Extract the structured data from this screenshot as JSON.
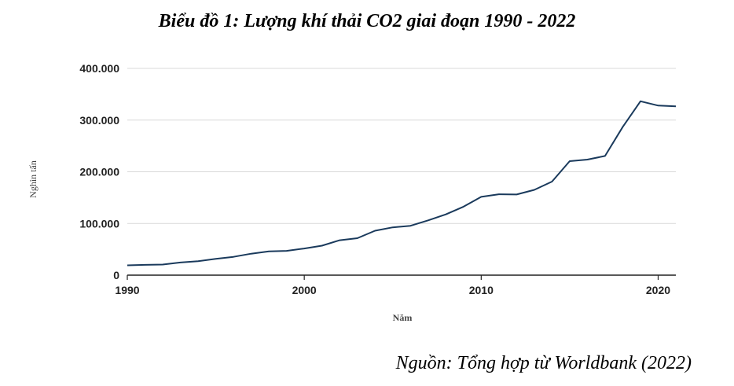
{
  "chart_data": {
    "type": "line",
    "title": "Biểu đồ 1: Lượng khí thải CO2 giai đoạn 1990 - 2022",
    "xlabel": "Năm",
    "ylabel": "Nghìn tấn",
    "source": "Nguồn: Tổng hợp từ Worldbank (2022)",
    "xlim": [
      1990,
      2021
    ],
    "ylim": [
      0,
      400000
    ],
    "x_ticks": [
      1990,
      2000,
      2010,
      2020
    ],
    "y_ticks": [
      {
        "value": 0,
        "label": "0"
      },
      {
        "value": 100000,
        "label": "100.000"
      },
      {
        "value": 200000,
        "label": "200.000"
      },
      {
        "value": 300000,
        "label": "300.000"
      },
      {
        "value": 400000,
        "label": "400.000"
      }
    ],
    "grid": "horizontal",
    "series_color": "#1a3a5c",
    "series": [
      {
        "x": [
          1990,
          1991,
          1992,
          1993,
          1994,
          1995,
          1996,
          1997,
          1998,
          1999,
          2000,
          2001,
          2002,
          2003,
          2004,
          2005,
          2006,
          2007,
          2008,
          2009,
          2010,
          2011,
          2012,
          2013,
          2014,
          2015,
          2016,
          2017,
          2018,
          2019,
          2020,
          2021
        ],
        "values": [
          19000,
          20000,
          20500,
          24500,
          27000,
          31500,
          35500,
          41500,
          46000,
          47000,
          51500,
          57000,
          67500,
          71500,
          86000,
          92500,
          95500,
          106000,
          117500,
          132500,
          151500,
          156500,
          156000,
          165000,
          181000,
          220500,
          223500,
          230500,
          287000,
          336500,
          328000,
          326500
        ]
      }
    ]
  }
}
